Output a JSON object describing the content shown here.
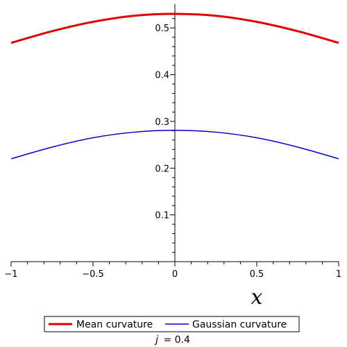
{
  "chart_data": {
    "type": "line",
    "xlabel": "x",
    "xlim": [
      -1,
      1
    ],
    "ylim": [
      0,
      0.54
    ],
    "x_ticks": [
      "−1",
      "−0.5",
      "0",
      "0.5",
      "1"
    ],
    "x_tick_values": [
      -1,
      -0.5,
      0,
      0.5,
      1
    ],
    "y_ticks": [
      "0.1",
      "0.2",
      "0.3",
      "0.4",
      "0.5"
    ],
    "y_tick_values": [
      0.1,
      0.2,
      0.3,
      0.4,
      0.5
    ],
    "x": [
      -1,
      -0.75,
      -0.5,
      -0.25,
      0,
      0.25,
      0.5,
      0.75,
      1
    ],
    "series": [
      {
        "name": "Mean curvature",
        "color": "#e00000",
        "values": [
          0.468,
          0.493,
          0.513,
          0.526,
          0.53,
          0.526,
          0.513,
          0.493,
          0.468
        ]
      },
      {
        "name": "Gaussian curvature",
        "color": "#0000cc",
        "values": [
          0.22,
          0.245,
          0.265,
          0.277,
          0.281,
          0.277,
          0.265,
          0.245,
          0.22
        ]
      }
    ],
    "legend_position": "bottom",
    "caption_var": "j",
    "caption_value": "= 0.4"
  }
}
